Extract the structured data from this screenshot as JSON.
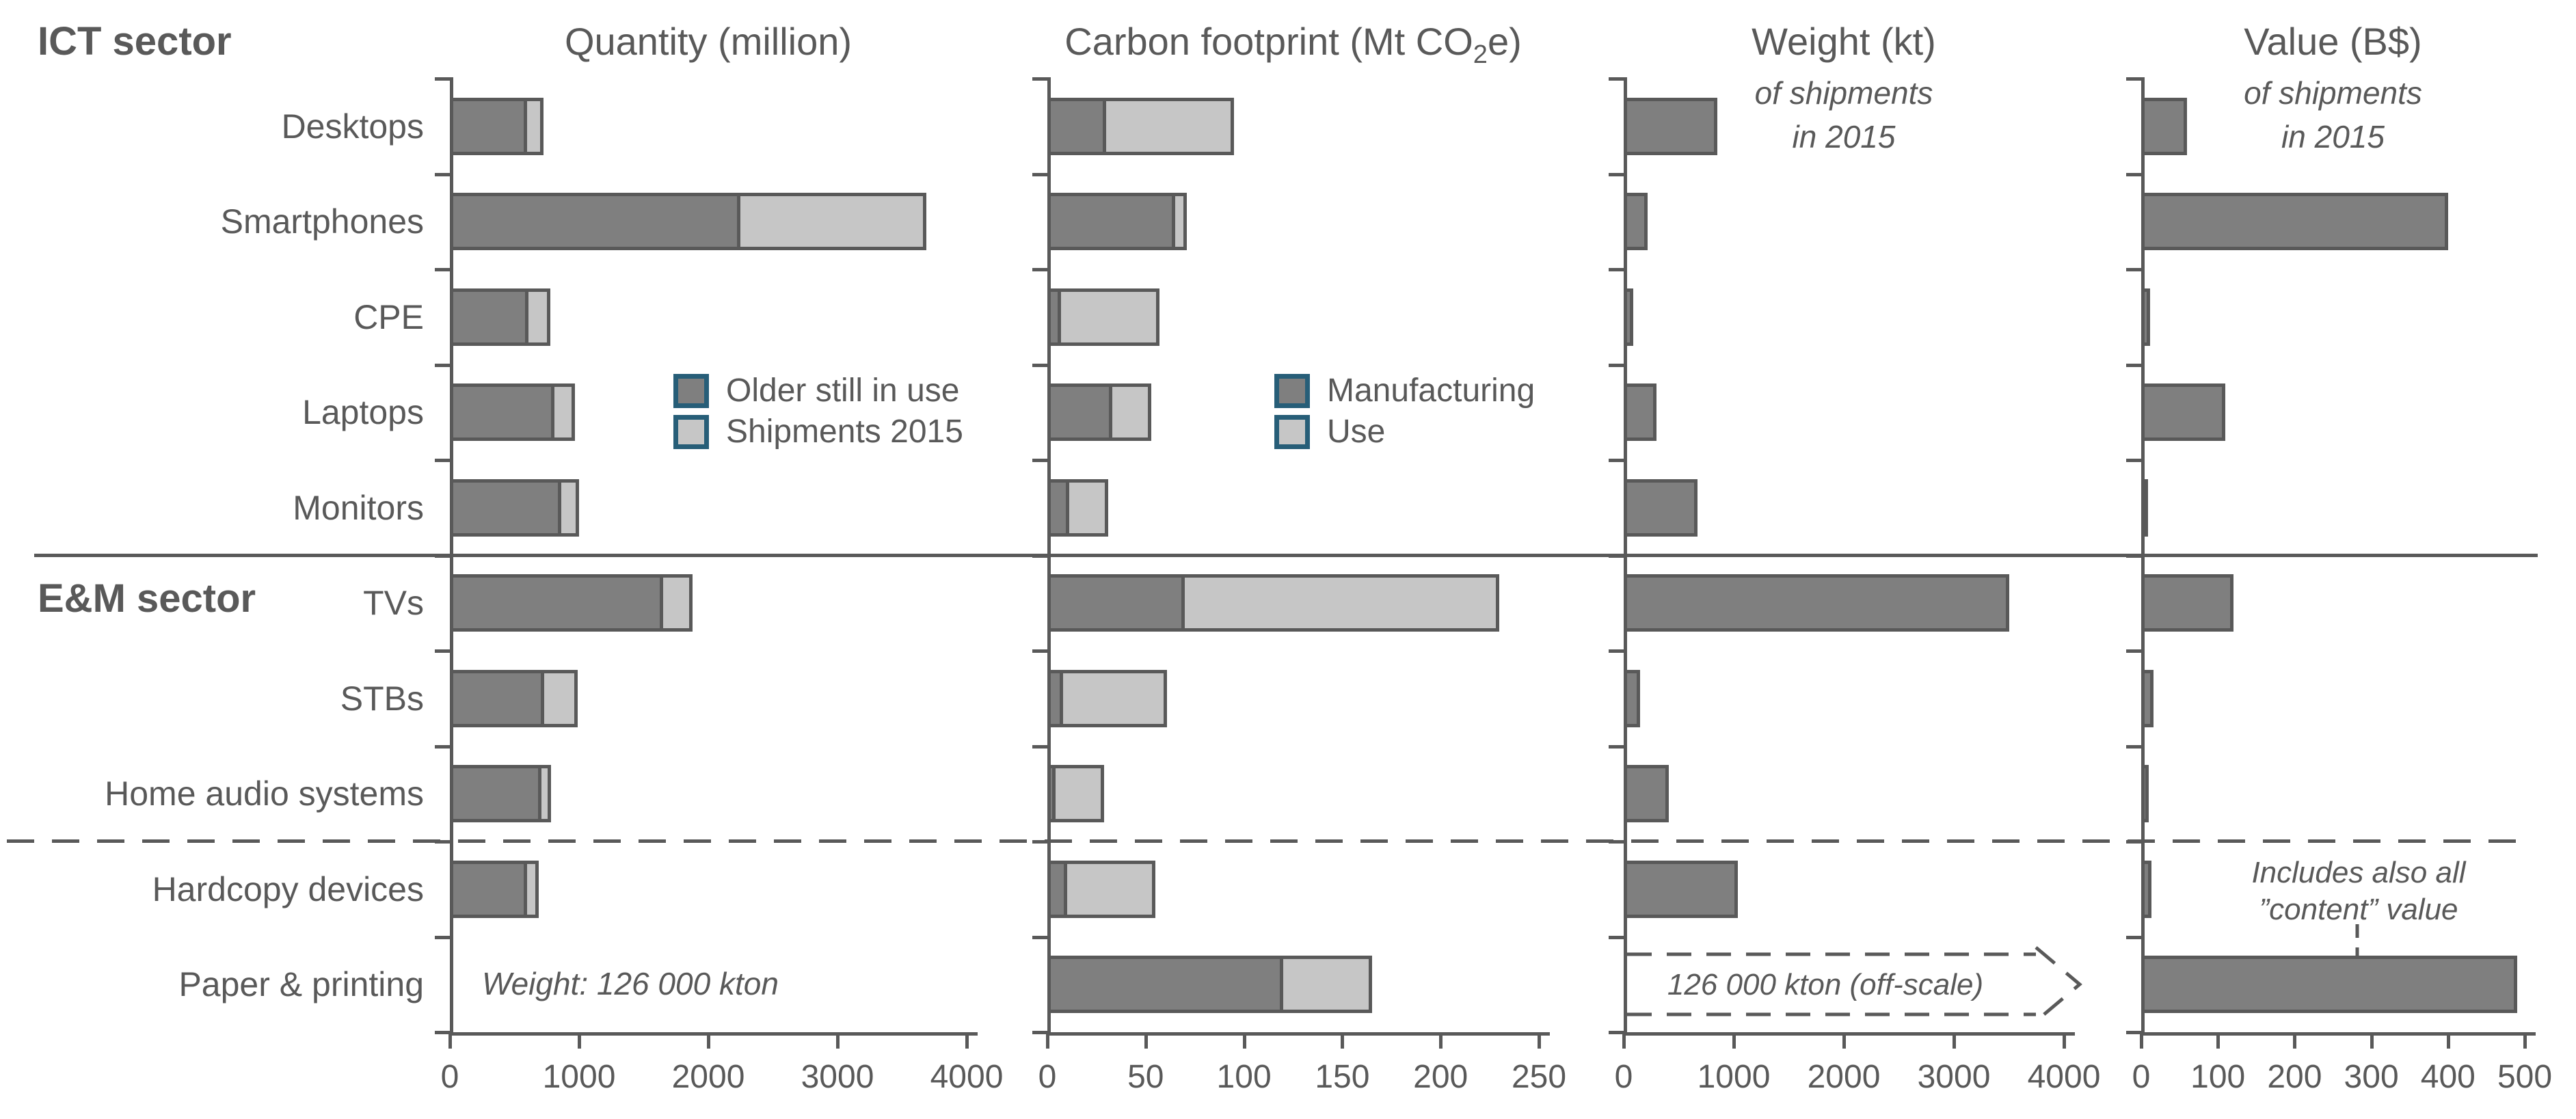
{
  "header": {
    "ict_sector": "ICT sector",
    "em_sector": "E&M sector"
  },
  "panels": {
    "quantity": {
      "title": "Quantity (million)"
    },
    "carbon": {
      "title_prefix": "Carbon footprint (Mt CO",
      "title_sub": "2",
      "title_suffix": "e)"
    },
    "weight": {
      "title": "Weight (kt)",
      "subtitle_line1": "of shipments",
      "subtitle_line2": "in 2015"
    },
    "value": {
      "title": "Value (B$)",
      "subtitle_line1": "of shipments",
      "subtitle_line2": "in 2015"
    }
  },
  "legend_quantity": {
    "items": [
      {
        "label": "Older still in use",
        "color": "#7F7F7F"
      },
      {
        "label": "Shipments 2015",
        "color": "#C6C6C6"
      }
    ]
  },
  "legend_carbon": {
    "items": [
      {
        "label": "Manufacturing",
        "color": "#7F7F7F"
      },
      {
        "label": "Use",
        "color": "#C6C6C6"
      }
    ]
  },
  "annotations": {
    "quantity_paper_note": "Weight: 126 000 kton",
    "weight_offscale_note": "126 000 kton (off-scale)",
    "value_content_note_line1": "Includes also all",
    "value_content_note_line2": "”content” value"
  },
  "colors": {
    "dark_series": "#7F7F7F",
    "light_series": "#C6C6C6",
    "outline": "#595959",
    "text": "#595959",
    "legend_swatch_border": "#275E78"
  },
  "chart_data": [
    {
      "type": "bar",
      "orientation": "horizontal",
      "title": "Quantity (million)",
      "categories": [
        "Desktops",
        "Smartphones",
        "CPE",
        "Laptops",
        "Monitors",
        "TVs",
        "STBs",
        "Home audio systems",
        "Hardcopy devices",
        "Paper & printing"
      ],
      "series": [
        {
          "name": "Older still in use",
          "values": [
            600,
            2250,
            610,
            810,
            860,
            1650,
            730,
            710,
            600,
            null
          ]
        },
        {
          "name": "Shipments 2015",
          "values": [
            125,
            1440,
            170,
            160,
            140,
            230,
            260,
            75,
            90,
            null
          ]
        }
      ],
      "xlim": [
        0,
        4000
      ],
      "xticks": [
        0,
        1000,
        2000,
        3000,
        4000
      ],
      "legend_position": "inside-middle-left",
      "grid": false,
      "annotation": "Weight: 126 000 kton"
    },
    {
      "type": "bar",
      "orientation": "horizontal",
      "title": "Carbon footprint (Mt CO2e)",
      "categories": [
        "Desktops",
        "Smartphones",
        "CPE",
        "Laptops",
        "Monitors",
        "TVs",
        "STBs",
        "Home audio systems",
        "Hardcopy devices",
        "Paper & printing"
      ],
      "series": [
        {
          "name": "Manufacturing",
          "values": [
            30,
            65,
            7,
            33,
            11,
            70,
            8,
            4,
            10,
            120
          ]
        },
        {
          "name": "Use",
          "values": [
            65,
            6,
            50,
            20,
            20,
            160,
            53,
            25,
            45,
            45
          ]
        }
      ],
      "xlim": [
        0,
        250
      ],
      "xticks": [
        0,
        50,
        100,
        150,
        200,
        250
      ],
      "legend_position": "inside-middle-right",
      "grid": false
    },
    {
      "type": "bar",
      "orientation": "horizontal",
      "title": "Weight (kt)",
      "subtitle": "of shipments in 2015",
      "categories": [
        "Desktops",
        "Smartphones",
        "CPE",
        "Laptops",
        "Monitors",
        "TVs",
        "STBs",
        "Home audio systems",
        "Hardcopy devices",
        "Paper & printing"
      ],
      "series": [
        {
          "name": "Weight of shipments in 2015",
          "values": [
            850,
            220,
            90,
            300,
            670,
            3500,
            150,
            410,
            1040,
            null
          ]
        }
      ],
      "xlim": [
        0,
        4000
      ],
      "xticks": [
        0,
        1000,
        2000,
        3000,
        4000
      ],
      "grid": false,
      "annotation": "126 000 kton (off-scale)",
      "annotation_value": 126000
    },
    {
      "type": "bar",
      "orientation": "horizontal",
      "title": "Value (B$)",
      "subtitle": "of shipments in 2015",
      "categories": [
        "Desktops",
        "Smartphones",
        "CPE",
        "Laptops",
        "Monitors",
        "TVs",
        "STBs",
        "Home audio systems",
        "Hardcopy devices",
        "Paper & printing"
      ],
      "series": [
        {
          "name": "Value of shipments in 2015",
          "values": [
            60,
            400,
            12,
            110,
            8,
            120,
            16,
            10,
            13,
            490
          ]
        }
      ],
      "xlim": [
        0,
        500
      ],
      "xticks": [
        0,
        100,
        200,
        300,
        400,
        500
      ],
      "grid": false,
      "annotation": "Includes also all ”content” value"
    }
  ]
}
